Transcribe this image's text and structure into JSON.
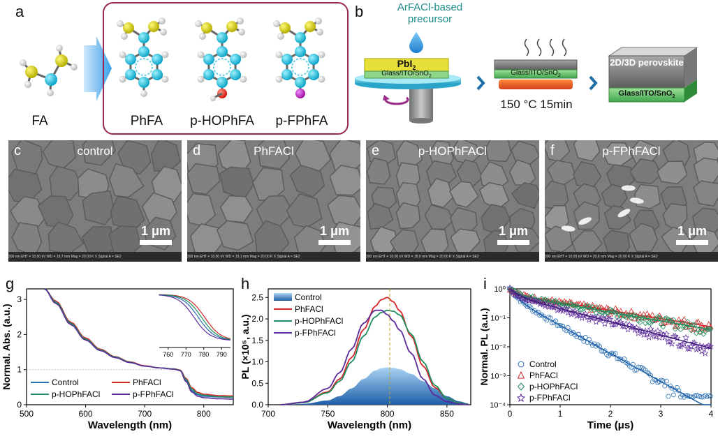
{
  "panel_a": {
    "letter": "a",
    "molecules": [
      "FA",
      "PhFA",
      "p-HOPhFA",
      "p-FPhFA"
    ]
  },
  "panel_b": {
    "letter": "b",
    "precursor_text": "ArFACl-based precursor",
    "pbi2": "PbI",
    "pbi2_sub": "2",
    "substrate": "Glass/ITO/SnO",
    "substrate_sub": "2",
    "anneal_text": "150 °C 15min",
    "product_text": "2D/3D perovskite"
  },
  "sem_panels": [
    {
      "letter": "c",
      "title": "control",
      "scale": "1 μm",
      "info": "200 nm   EHT = 10.00 kV   WD = 18.7 mm   Mag = 20.00 K X  Signal A = SE2"
    },
    {
      "letter": "d",
      "title": "PhFACl",
      "scale": "1 μm",
      "info": "200 nm   EHT = 10.00 kV   WD = 19.1 mm   Mag = 20.00 K X  Signal A = SE2"
    },
    {
      "letter": "e",
      "title": "p-HOPhFACl",
      "scale": "1 μm",
      "info": "200 nm   EHT = 10.00 kV   WD = 18.0 mm   Mag = 20.00 K X  Signal A = SE2"
    },
    {
      "letter": "f",
      "title": "p-FPhFACl",
      "scale": "1 μm",
      "info": "200 nm   EHT = 10.00 kV   WD = 20.6 mm   Mag = 20.00 K X  Signal A = SE2"
    }
  ],
  "colors": {
    "control": "#2a6fb5",
    "ph": "#d62728",
    "ho": "#1f8f5f",
    "f": "#5b2a9a"
  },
  "chart_data": [
    {
      "letter": "g",
      "type": "line",
      "xlabel": "Wavelength (nm)",
      "ylabel": "Normal. Abs. (a.u.)",
      "xlim": [
        500,
        850
      ],
      "ylim": [
        0,
        3.3
      ],
      "xticks": [
        500,
        600,
        700,
        800
      ],
      "yticks": [
        0,
        1,
        2,
        3
      ],
      "legend": [
        "Control",
        "PhFACl",
        "p-HOPhFACl",
        "p-FPhFACl"
      ],
      "x": [
        530,
        550,
        575,
        600,
        625,
        650,
        675,
        700,
        725,
        750,
        760,
        770,
        780,
        790,
        800,
        825,
        850
      ],
      "series": [
        {
          "name": "Control",
          "values": [
            3.3,
            2.9,
            2.3,
            1.85,
            1.55,
            1.35,
            1.2,
            1.1,
            1.05,
            1.02,
            0.98,
            0.7,
            0.4,
            0.28,
            0.24,
            0.22,
            0.21
          ]
        },
        {
          "name": "PhFACl",
          "values": [
            3.3,
            2.95,
            2.35,
            1.9,
            1.58,
            1.37,
            1.22,
            1.11,
            1.05,
            1.02,
            0.99,
            0.75,
            0.48,
            0.35,
            0.3,
            0.26,
            0.25
          ]
        },
        {
          "name": "p-HOPhFACl",
          "values": [
            3.3,
            2.92,
            2.32,
            1.87,
            1.56,
            1.36,
            1.21,
            1.1,
            1.05,
            1.02,
            0.98,
            0.72,
            0.44,
            0.31,
            0.27,
            0.23,
            0.22
          ]
        },
        {
          "name": "p-FPhFACl",
          "values": [
            3.3,
            2.88,
            2.28,
            1.84,
            1.54,
            1.34,
            1.2,
            1.1,
            1.05,
            1.01,
            0.97,
            0.66,
            0.36,
            0.24,
            0.2,
            0.17,
            0.16
          ]
        }
      ],
      "inset": {
        "xticks": [
          760,
          770,
          780,
          790
        ],
        "xlim": [
          755,
          795
        ]
      }
    },
    {
      "letter": "h",
      "type": "line",
      "xlabel": "Wavelength (nm)",
      "ylabel": "PL (×10⁵, a.u.)",
      "xlim": [
        700,
        870
      ],
      "ylim": [
        0,
        2.7
      ],
      "xticks": [
        700,
        750,
        800,
        850
      ],
      "yticks": [
        0.0,
        0.5,
        1.0,
        1.5,
        2.0,
        2.5
      ],
      "legend": [
        "Control",
        "PhFACl",
        "p-HOPhFACl",
        "p-FPhFACl"
      ],
      "x": [
        710,
        730,
        750,
        760,
        770,
        780,
        790,
        795,
        800,
        805,
        810,
        820,
        830,
        840,
        850,
        860,
        868
      ],
      "series": [
        {
          "name": "Control",
          "values": [
            0.0,
            0.02,
            0.1,
            0.2,
            0.38,
            0.6,
            0.8,
            0.85,
            0.87,
            0.86,
            0.83,
            0.72,
            0.55,
            0.38,
            0.2,
            0.08,
            0.03
          ]
        },
        {
          "name": "PhFACl",
          "values": [
            0.0,
            0.05,
            0.3,
            0.6,
            1.1,
            1.75,
            2.3,
            2.45,
            2.5,
            2.4,
            2.2,
            1.6,
            0.9,
            0.4,
            0.15,
            0.04,
            0.01
          ]
        },
        {
          "name": "p-HOPhFACl",
          "values": [
            0.0,
            0.05,
            0.28,
            0.55,
            1.0,
            1.6,
            2.05,
            2.15,
            2.2,
            2.18,
            2.1,
            1.65,
            1.0,
            0.45,
            0.15,
            0.04,
            0.01
          ]
        },
        {
          "name": "p-FPhFACl",
          "values": [
            0.0,
            0.06,
            0.38,
            0.75,
            1.3,
            1.9,
            2.2,
            2.2,
            2.1,
            1.95,
            1.75,
            1.2,
            0.6,
            0.22,
            0.07,
            0.02,
            0.0
          ]
        }
      ],
      "peak_line": 802
    },
    {
      "letter": "i",
      "type": "scatter",
      "xlabel": "Time (μs)",
      "ylabel": "Normal. PL (a.u.)",
      "xlim": [
        0,
        4
      ],
      "ylim_log10": [
        -4,
        0
      ],
      "yscale": "log",
      "xticks": [
        0,
        1,
        2,
        3,
        4
      ],
      "ytick_labels": [
        "10⁰",
        "10⁻¹",
        "10⁻²",
        "10⁻³",
        "10⁻⁴"
      ],
      "legend": [
        "Control",
        "PhFACl",
        "p-HOPhFACl",
        "p-FPhFACl"
      ],
      "series": [
        {
          "name": "Control",
          "marker": "circle",
          "tau1": 0.12,
          "tau2": 0.45,
          "a1": 0.5
        },
        {
          "name": "PhFACl",
          "marker": "triangle",
          "tau1": 0.15,
          "tau2": 1.55,
          "a1": 0.35
        },
        {
          "name": "p-HOPhFACl",
          "marker": "diamond",
          "tau1": 0.15,
          "tau2": 1.45,
          "a1": 0.38
        },
        {
          "name": "p-FPhFACl",
          "marker": "star",
          "tau1": 0.14,
          "tau2": 0.95,
          "a1": 0.4
        }
      ]
    }
  ]
}
